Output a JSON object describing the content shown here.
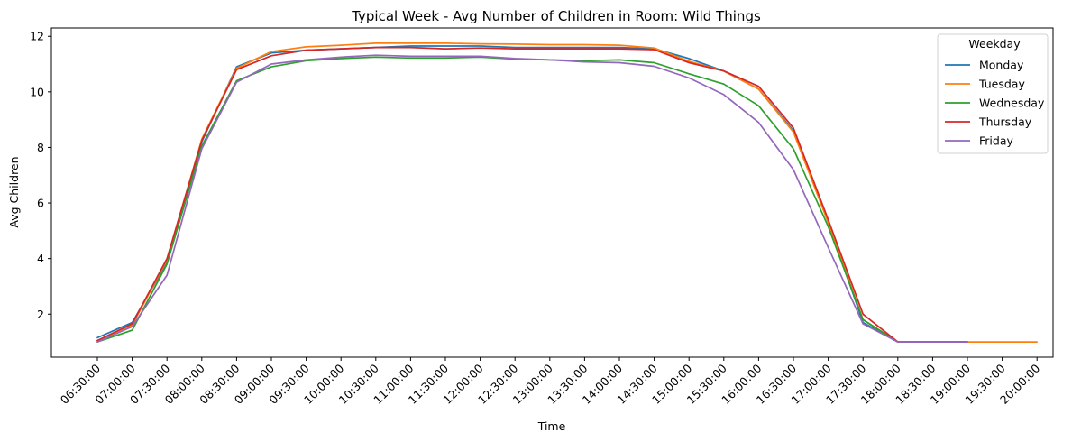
{
  "chart_data": {
    "type": "line",
    "title": "Typical Week - Avg Number of Children in Room: Wild Things",
    "xlabel": "Time",
    "ylabel": "Avg Children",
    "ylim": [
      0.45,
      12.3
    ],
    "yticks": [
      2,
      4,
      6,
      8,
      10,
      12
    ],
    "categories": [
      "06:30:00",
      "07:00:00",
      "07:30:00",
      "08:00:00",
      "08:30:00",
      "09:00:00",
      "09:30:00",
      "10:00:00",
      "10:30:00",
      "11:00:00",
      "11:30:00",
      "12:00:00",
      "12:30:00",
      "13:00:00",
      "13:30:00",
      "14:00:00",
      "14:30:00",
      "15:00:00",
      "15:30:00",
      "16:00:00",
      "16:30:00",
      "17:00:00",
      "17:30:00",
      "18:00:00",
      "18:30:00",
      "19:00:00",
      "19:30:00",
      "20:00:00"
    ],
    "legend": {
      "title": "Weekday",
      "position": "upper right"
    },
    "grid": false,
    "series": [
      {
        "name": "Monday",
        "color": "#1f77b4",
        "values": [
          1.15,
          1.7,
          3.85,
          8.2,
          10.9,
          11.4,
          11.5,
          11.55,
          11.6,
          11.65,
          11.65,
          11.65,
          11.6,
          11.6,
          11.6,
          11.6,
          11.55,
          11.2,
          10.75,
          10.1,
          8.6,
          5.3,
          1.7,
          1.0,
          1.0,
          1.0,
          null,
          null
        ]
      },
      {
        "name": "Tuesday",
        "color": "#ff7f0e",
        "values": [
          1.05,
          1.6,
          3.95,
          8.3,
          10.85,
          11.45,
          11.62,
          11.68,
          11.75,
          11.75,
          11.75,
          11.73,
          11.72,
          11.7,
          11.7,
          11.68,
          11.58,
          11.1,
          10.75,
          10.1,
          8.55,
          5.3,
          1.8,
          1.0,
          1.0,
          1.0,
          1.0,
          1.0
        ]
      },
      {
        "name": "Wednesday",
        "color": "#2ca02c",
        "values": [
          1.0,
          1.42,
          3.8,
          8.05,
          10.4,
          10.9,
          11.12,
          11.2,
          11.25,
          11.22,
          11.22,
          11.25,
          11.18,
          11.15,
          11.12,
          11.15,
          11.05,
          10.65,
          10.28,
          9.5,
          7.95,
          5.15,
          1.8,
          1.0,
          1.0,
          1.0,
          null,
          null
        ]
      },
      {
        "name": "Thursday",
        "color": "#d62728",
        "values": [
          1.05,
          1.65,
          4.0,
          8.25,
          10.8,
          11.3,
          11.5,
          11.55,
          11.6,
          11.6,
          11.55,
          11.58,
          11.55,
          11.55,
          11.55,
          11.55,
          11.52,
          11.05,
          10.75,
          10.2,
          8.7,
          5.4,
          2.0,
          1.0,
          1.0,
          1.0,
          null,
          null
        ]
      },
      {
        "name": "Friday",
        "color": "#9467bd",
        "values": [
          1.0,
          1.55,
          3.4,
          7.95,
          10.35,
          11.0,
          11.15,
          11.25,
          11.32,
          11.28,
          11.28,
          11.28,
          11.2,
          11.15,
          11.08,
          11.05,
          10.92,
          10.5,
          9.9,
          8.9,
          7.2,
          4.4,
          1.65,
          1.0,
          1.0,
          1.0,
          null,
          null
        ]
      }
    ]
  }
}
